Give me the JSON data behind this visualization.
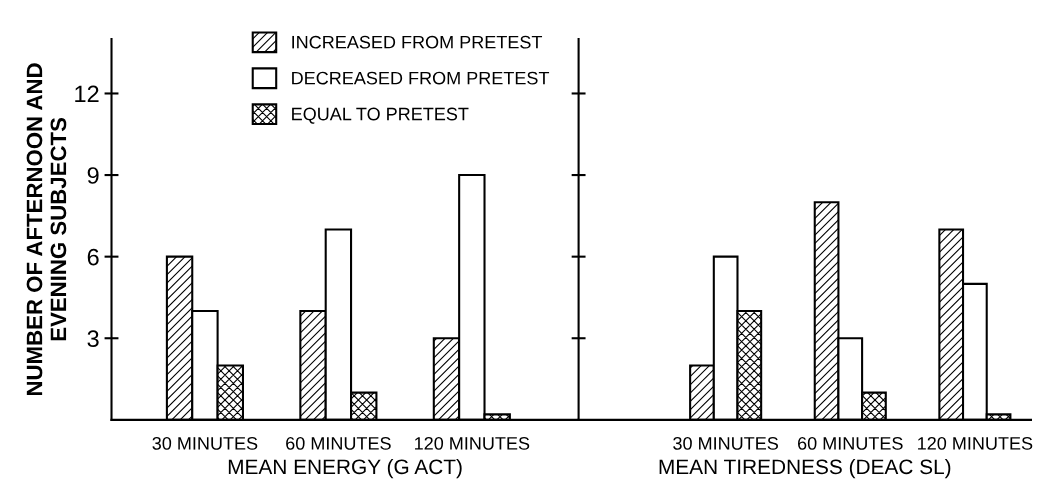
{
  "chart_data": [
    {
      "type": "bar",
      "categories": [
        "30 MINUTES",
        "60 MINUTES",
        "120 MINUTES"
      ],
      "xlabel": "MEAN ENERGY (G ACT)",
      "ylabel": "NUMBER OF AFTERNOON AND\nEVENING SUBJECTS",
      "ylim": [
        0,
        14
      ],
      "yticks": [
        3,
        6,
        9,
        12
      ],
      "legend": "top",
      "series": [
        {
          "name": "INCREASED FROM PRETEST",
          "color": "#000000",
          "values": [
            6,
            4,
            3
          ]
        },
        {
          "name": "DECREASED FROM PRETEST",
          "color": "#ffffff",
          "values": [
            4,
            7,
            9
          ]
        },
        {
          "name": "EQUAL TO PRETEST",
          "color": "#000000",
          "values": [
            2,
            1,
            0.2
          ]
        }
      ]
    },
    {
      "type": "bar",
      "categories": [
        "30 MINUTES",
        "60 MINUTES",
        "120 MINUTES"
      ],
      "xlabel": "MEAN TIREDNESS (DEAC SL)",
      "ylim": [
        0,
        14
      ],
      "yticks": [
        3,
        6,
        9,
        12
      ],
      "tick_labels": "x",
      "series": [
        {
          "color": "#000000",
          "values": [
            2,
            8,
            7
          ]
        },
        {
          "color": "#ffffff",
          "values": [
            6,
            3,
            5
          ]
        },
        {
          "color": "#000000",
          "values": [
            4,
            1,
            0.2
          ]
        }
      ]
    }
  ]
}
